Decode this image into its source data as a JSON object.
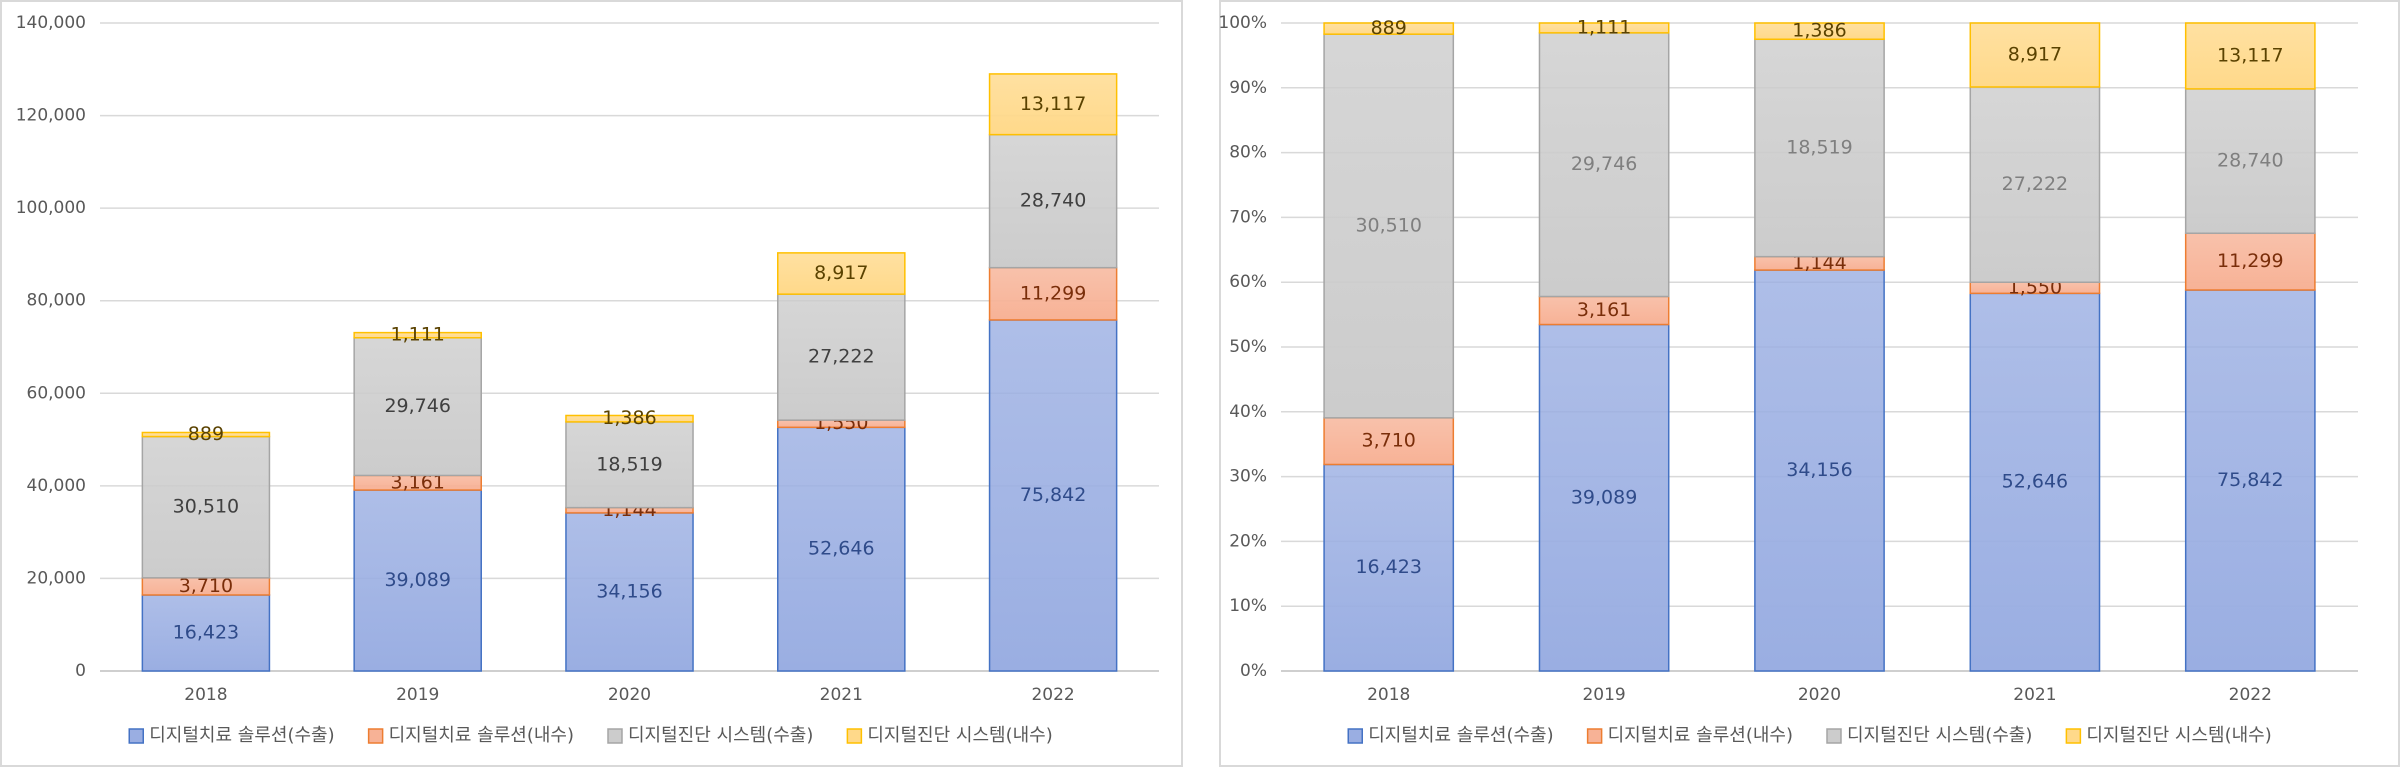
{
  "chart_data": [
    {
      "type": "stacked_bar",
      "categories": [
        "2018",
        "2019",
        "2020",
        "2021",
        "2022"
      ],
      "series": [
        {
          "name": "디지털치료 솔루션(수출)",
          "color": "#9aaee2",
          "edge_color": "#4472c4",
          "label_color": "#2f4b8a",
          "values": [
            16423,
            39089,
            34156,
            52646,
            75842
          ],
          "value_labels": [
            "16,423",
            "39,089",
            "34,156",
            "52,646",
            "75,842"
          ]
        },
        {
          "name": "디지털치료 솔루션(내수)",
          "color": "#f7b296",
          "edge_color": "#ed7d31",
          "label_color": "#7a2e0a",
          "values": [
            3710,
            3161,
            1144,
            1550,
            11299
          ],
          "value_labels": [
            "3,710",
            "3,161",
            "1,144",
            "1,550",
            "11,299"
          ]
        },
        {
          "name": "디지털진단 시스템(수출)",
          "color": "#cccccc",
          "edge_color": "#a5a5a5",
          "label_color": "#404040",
          "values": [
            30510,
            29746,
            18519,
            27222,
            28740
          ],
          "value_labels": [
            "30,510",
            "29,746",
            "18,519",
            "27,222",
            "28,740"
          ]
        },
        {
          "name": "디지털진단 시스템(내수)",
          "color": "#ffd98a",
          "edge_color": "#ffc000",
          "label_color": "#5a4200",
          "values": [
            889,
            1111,
            1386,
            8917,
            13117
          ],
          "value_labels": [
            "889",
            "1,111",
            "1,386",
            "8,917",
            "13,117"
          ]
        }
      ],
      "ylim": [
        0,
        140000
      ],
      "yticks": [
        0,
        {
          "value": 20000,
          "label": "20,000"
        },
        {
          "value": 40000,
          "label": "40,000"
        },
        {
          "value": 60000,
          "label": "60,000"
        },
        {
          "value": 80000,
          "label": "80,000"
        },
        {
          "value": 100000,
          "label": "100,000"
        },
        {
          "value": 120000,
          "label": "120,000"
        },
        {
          "value": 140000,
          "label": "140,000"
        }
      ],
      "grid": true,
      "legend": "bottom"
    },
    {
      "type": "stacked_percent_bar",
      "categories": [
        "2018",
        "2019",
        "2020",
        "2021",
        "2022"
      ],
      "series": [
        {
          "name": "디지털치료 솔루션(수출)",
          "color": "#9aaee2",
          "edge_color": "#4472c4",
          "label_color": "#2f4b8a",
          "values": [
            16423,
            39089,
            34156,
            52646,
            75842
          ],
          "value_labels": [
            "16,423",
            "39,089",
            "34,156",
            "52,646",
            "75,842"
          ]
        },
        {
          "name": "디지털치료 솔루션(내수)",
          "color": "#f7b296",
          "edge_color": "#ed7d31",
          "label_color": "#7a2e0a",
          "values": [
            3710,
            3161,
            1144,
            1550,
            11299
          ],
          "value_labels": [
            "3,710",
            "3,161",
            "1,144",
            "1,550",
            "11,299"
          ]
        },
        {
          "name": "디지털진단 시스템(수출)",
          "color": "#cccccc",
          "edge_color": "#a5a5a5",
          "label_color": "#7f7f7f",
          "values": [
            30510,
            29746,
            18519,
            27222,
            28740
          ],
          "value_labels": [
            "30,510",
            "29,746",
            "18,519",
            "27,222",
            "28,740"
          ]
        },
        {
          "name": "디지털진단 시스템(내수)",
          "color": "#ffd98a",
          "edge_color": "#ffc000",
          "label_color": "#5a4200",
          "values": [
            889,
            1111,
            1386,
            8917,
            13117
          ],
          "value_labels": [
            "889",
            "1,111",
            "1,386",
            "8,917",
            "13,117"
          ]
        }
      ],
      "ylim": [
        0,
        100
      ],
      "yticks": [
        {
          "value": 0,
          "label": "0%"
        },
        {
          "value": 10,
          "label": "10%"
        },
        {
          "value": 20,
          "label": "20%"
        },
        {
          "value": 30,
          "label": "30%"
        },
        {
          "value": 40,
          "label": "40%"
        },
        {
          "value": 50,
          "label": "50%"
        },
        {
          "value": 60,
          "label": "60%"
        },
        {
          "value": 70,
          "label": "70%"
        },
        {
          "value": 80,
          "label": "80%"
        },
        {
          "value": 90,
          "label": "90%"
        },
        {
          "value": 100,
          "label": "100%"
        }
      ],
      "grid": true,
      "legend": "bottom"
    }
  ]
}
